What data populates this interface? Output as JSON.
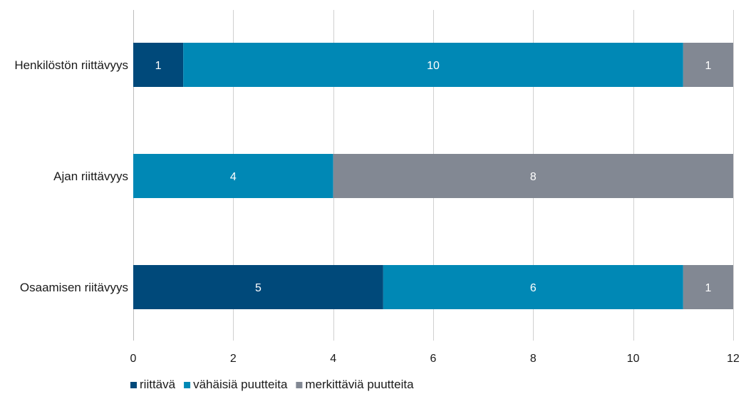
{
  "chart_data": {
    "type": "bar",
    "orientation": "horizontal",
    "stacked": true,
    "title": "",
    "xlabel": "",
    "ylabel": "",
    "xlim": [
      0,
      12
    ],
    "x_ticks": [
      0,
      2,
      4,
      6,
      8,
      10,
      12
    ],
    "grid": true,
    "legend_position": "bottom-left",
    "categories": [
      "Henkilöstön riittävyys",
      "Ajan riittävyys",
      "Osaamisen riitävyys"
    ],
    "series": [
      {
        "name": "riittävä",
        "color": "#00497a",
        "values": [
          1,
          0,
          5
        ]
      },
      {
        "name": "vähäisiä puutteita",
        "color": "#0088b5",
        "values": [
          10,
          4,
          6
        ]
      },
      {
        "name": "merkittäviä puutteita",
        "color": "#828893",
        "values": [
          1,
          8,
          1
        ]
      }
    ]
  }
}
